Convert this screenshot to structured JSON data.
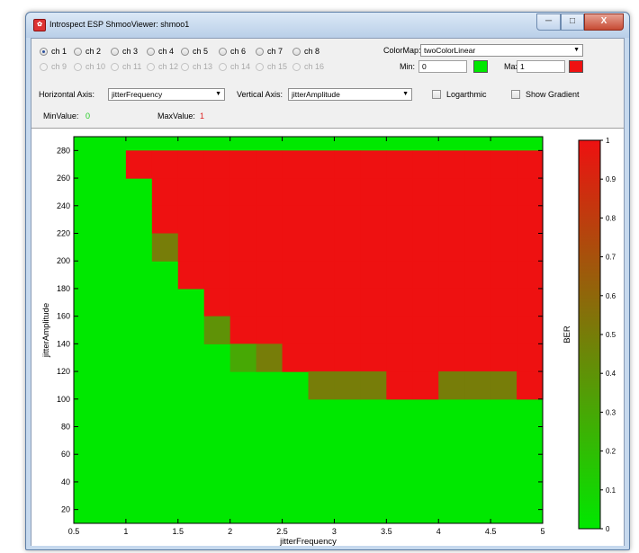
{
  "window": {
    "title": "Introspect ESP ShmooViewer: shmoo1",
    "app_icon": "app-logo-icon",
    "controls": {
      "minimize": "─",
      "maximize": "□",
      "close": "X"
    }
  },
  "channels": [
    {
      "label": "ch 1",
      "enabled": true,
      "selected": true
    },
    {
      "label": "ch 2",
      "enabled": true,
      "selected": false
    },
    {
      "label": "ch 3",
      "enabled": true,
      "selected": false
    },
    {
      "label": "ch 4",
      "enabled": true,
      "selected": false
    },
    {
      "label": "ch 5",
      "enabled": true,
      "selected": false
    },
    {
      "label": "ch 6",
      "enabled": true,
      "selected": false
    },
    {
      "label": "ch 7",
      "enabled": true,
      "selected": false
    },
    {
      "label": "ch 8",
      "enabled": true,
      "selected": false
    },
    {
      "label": "ch 9",
      "enabled": false,
      "selected": false
    },
    {
      "label": "ch 10",
      "enabled": false,
      "selected": false
    },
    {
      "label": "ch 11",
      "enabled": false,
      "selected": false
    },
    {
      "label": "ch 12",
      "enabled": false,
      "selected": false
    },
    {
      "label": "ch 13",
      "enabled": false,
      "selected": false
    },
    {
      "label": "ch 14",
      "enabled": false,
      "selected": false
    },
    {
      "label": "ch 15",
      "enabled": false,
      "selected": false
    },
    {
      "label": "ch 16",
      "enabled": false,
      "selected": false
    }
  ],
  "colormap": {
    "label": "ColorMap:",
    "value": "twoColorLinear",
    "min_label": "Min:",
    "min_value": "0",
    "min_color": "#00e800",
    "max_label": "Max:",
    "max_value": "1",
    "max_color": "#ee1111"
  },
  "axes_controls": {
    "horizontal_label": "Horizontal Axis:",
    "horizontal_value": "jitterFrequency",
    "vertical_label": "Vertical Axis:",
    "vertical_value": "jitterAmplitude",
    "log_label": "Logarthmic",
    "log_checked": false,
    "gradient_label": "Show Gradient",
    "gradient_checked": false
  },
  "range": {
    "min_label": "MinValue:",
    "min_value": "0",
    "min_color": "#22cc22",
    "max_label": "MaxValue:",
    "max_value": "1",
    "max_color": "#dd2222"
  },
  "chart_data": {
    "type": "heatmap",
    "title": "",
    "xlabel": "jitterFrequency",
    "ylabel": "jitterAmplitude",
    "xlim": [
      0.5,
      5
    ],
    "ylim": [
      10,
      290
    ],
    "xticks": [
      "0.5",
      "1",
      "1.5",
      "2",
      "2.5",
      "3",
      "3.5",
      "4",
      "4.5",
      "5"
    ],
    "xtick_values": [
      0.5,
      1,
      1.5,
      2,
      2.5,
      3,
      3.5,
      4,
      4.5,
      5
    ],
    "yticks": [
      "20",
      "40",
      "60",
      "80",
      "100",
      "120",
      "140",
      "160",
      "180",
      "200",
      "220",
      "240",
      "260",
      "280"
    ],
    "ytick_values": [
      20,
      40,
      60,
      80,
      100,
      120,
      140,
      160,
      180,
      200,
      220,
      240,
      260,
      280
    ],
    "x_cell_width": 0.25,
    "y_cell_height": 20,
    "note_cells": "Cells not listed have value 0 (green). Each cell spans x to x+0.25 and y to y+20.",
    "cells": [
      {
        "x": 1.125,
        "y": 270,
        "v": 1
      },
      {
        "x": 1.375,
        "y": 270,
        "v": 1
      },
      {
        "x": 1.625,
        "y": 270,
        "v": 1
      },
      {
        "x": 1.875,
        "y": 270,
        "v": 1
      },
      {
        "x": 2.125,
        "y": 270,
        "v": 1
      },
      {
        "x": 2.375,
        "y": 270,
        "v": 1
      },
      {
        "x": 2.625,
        "y": 270,
        "v": 1
      },
      {
        "x": 2.875,
        "y": 270,
        "v": 1
      },
      {
        "x": 3.125,
        "y": 270,
        "v": 1
      },
      {
        "x": 3.375,
        "y": 270,
        "v": 1
      },
      {
        "x": 3.625,
        "y": 270,
        "v": 1
      },
      {
        "x": 3.875,
        "y": 270,
        "v": 1
      },
      {
        "x": 4.125,
        "y": 270,
        "v": 1
      },
      {
        "x": 4.375,
        "y": 270,
        "v": 1
      },
      {
        "x": 4.625,
        "y": 270,
        "v": 1
      },
      {
        "x": 4.875,
        "y": 270,
        "v": 1
      },
      {
        "x": 1.375,
        "y": 250,
        "v": 1
      },
      {
        "x": 1.625,
        "y": 250,
        "v": 1
      },
      {
        "x": 1.875,
        "y": 250,
        "v": 1
      },
      {
        "x": 2.125,
        "y": 250,
        "v": 1
      },
      {
        "x": 2.375,
        "y": 250,
        "v": 1
      },
      {
        "x": 2.625,
        "y": 250,
        "v": 1
      },
      {
        "x": 2.875,
        "y": 250,
        "v": 1
      },
      {
        "x": 3.125,
        "y": 250,
        "v": 1
      },
      {
        "x": 3.375,
        "y": 250,
        "v": 1
      },
      {
        "x": 3.625,
        "y": 250,
        "v": 1
      },
      {
        "x": 3.875,
        "y": 250,
        "v": 1
      },
      {
        "x": 4.125,
        "y": 250,
        "v": 1
      },
      {
        "x": 4.375,
        "y": 250,
        "v": 1
      },
      {
        "x": 4.625,
        "y": 250,
        "v": 1
      },
      {
        "x": 4.875,
        "y": 250,
        "v": 1
      },
      {
        "x": 1.375,
        "y": 230,
        "v": 1
      },
      {
        "x": 1.625,
        "y": 230,
        "v": 1
      },
      {
        "x": 1.875,
        "y": 230,
        "v": 1
      },
      {
        "x": 2.125,
        "y": 230,
        "v": 1
      },
      {
        "x": 2.375,
        "y": 230,
        "v": 1
      },
      {
        "x": 2.625,
        "y": 230,
        "v": 1
      },
      {
        "x": 2.875,
        "y": 230,
        "v": 1
      },
      {
        "x": 3.125,
        "y": 230,
        "v": 1
      },
      {
        "x": 3.375,
        "y": 230,
        "v": 1
      },
      {
        "x": 3.625,
        "y": 230,
        "v": 1
      },
      {
        "x": 3.875,
        "y": 230,
        "v": 1
      },
      {
        "x": 4.125,
        "y": 230,
        "v": 1
      },
      {
        "x": 4.375,
        "y": 230,
        "v": 1
      },
      {
        "x": 4.625,
        "y": 230,
        "v": 1
      },
      {
        "x": 4.875,
        "y": 230,
        "v": 1
      },
      {
        "x": 1.375,
        "y": 210,
        "v": 0.5
      },
      {
        "x": 1.625,
        "y": 210,
        "v": 1
      },
      {
        "x": 1.875,
        "y": 210,
        "v": 1
      },
      {
        "x": 2.125,
        "y": 210,
        "v": 1
      },
      {
        "x": 2.375,
        "y": 210,
        "v": 1
      },
      {
        "x": 2.625,
        "y": 210,
        "v": 1
      },
      {
        "x": 2.875,
        "y": 210,
        "v": 1
      },
      {
        "x": 3.125,
        "y": 210,
        "v": 1
      },
      {
        "x": 3.375,
        "y": 210,
        "v": 1
      },
      {
        "x": 3.625,
        "y": 210,
        "v": 1
      },
      {
        "x": 3.875,
        "y": 210,
        "v": 1
      },
      {
        "x": 4.125,
        "y": 210,
        "v": 1
      },
      {
        "x": 4.375,
        "y": 210,
        "v": 1
      },
      {
        "x": 4.625,
        "y": 210,
        "v": 1
      },
      {
        "x": 4.875,
        "y": 210,
        "v": 1
      },
      {
        "x": 1.625,
        "y": 190,
        "v": 1
      },
      {
        "x": 1.875,
        "y": 190,
        "v": 1
      },
      {
        "x": 2.125,
        "y": 190,
        "v": 1
      },
      {
        "x": 2.375,
        "y": 190,
        "v": 1
      },
      {
        "x": 2.625,
        "y": 190,
        "v": 1
      },
      {
        "x": 2.875,
        "y": 190,
        "v": 1
      },
      {
        "x": 3.125,
        "y": 190,
        "v": 1
      },
      {
        "x": 3.375,
        "y": 190,
        "v": 1
      },
      {
        "x": 3.625,
        "y": 190,
        "v": 1
      },
      {
        "x": 3.875,
        "y": 190,
        "v": 1
      },
      {
        "x": 4.125,
        "y": 190,
        "v": 1
      },
      {
        "x": 4.375,
        "y": 190,
        "v": 1
      },
      {
        "x": 4.625,
        "y": 190,
        "v": 1
      },
      {
        "x": 4.875,
        "y": 190,
        "v": 1
      },
      {
        "x": 1.875,
        "y": 170,
        "v": 1
      },
      {
        "x": 2.125,
        "y": 170,
        "v": 1
      },
      {
        "x": 2.375,
        "y": 170,
        "v": 1
      },
      {
        "x": 2.625,
        "y": 170,
        "v": 1
      },
      {
        "x": 2.875,
        "y": 170,
        "v": 1
      },
      {
        "x": 3.125,
        "y": 170,
        "v": 1
      },
      {
        "x": 3.375,
        "y": 170,
        "v": 1
      },
      {
        "x": 3.625,
        "y": 170,
        "v": 1
      },
      {
        "x": 3.875,
        "y": 170,
        "v": 1
      },
      {
        "x": 4.125,
        "y": 170,
        "v": 1
      },
      {
        "x": 4.375,
        "y": 170,
        "v": 1
      },
      {
        "x": 4.625,
        "y": 170,
        "v": 1
      },
      {
        "x": 4.875,
        "y": 170,
        "v": 1
      },
      {
        "x": 1.875,
        "y": 150,
        "v": 0.4
      },
      {
        "x": 2.125,
        "y": 150,
        "v": 1
      },
      {
        "x": 2.375,
        "y": 150,
        "v": 1
      },
      {
        "x": 2.625,
        "y": 150,
        "v": 1
      },
      {
        "x": 2.875,
        "y": 150,
        "v": 1
      },
      {
        "x": 3.125,
        "y": 150,
        "v": 1
      },
      {
        "x": 3.375,
        "y": 150,
        "v": 1
      },
      {
        "x": 3.625,
        "y": 150,
        "v": 1
      },
      {
        "x": 3.875,
        "y": 150,
        "v": 1
      },
      {
        "x": 4.125,
        "y": 150,
        "v": 1
      },
      {
        "x": 4.375,
        "y": 150,
        "v": 1
      },
      {
        "x": 4.625,
        "y": 150,
        "v": 1
      },
      {
        "x": 4.875,
        "y": 150,
        "v": 1
      },
      {
        "x": 2.125,
        "y": 130,
        "v": 0.3
      },
      {
        "x": 2.375,
        "y": 130,
        "v": 0.5
      },
      {
        "x": 2.625,
        "y": 130,
        "v": 1
      },
      {
        "x": 2.875,
        "y": 130,
        "v": 1
      },
      {
        "x": 3.125,
        "y": 130,
        "v": 1
      },
      {
        "x": 3.375,
        "y": 130,
        "v": 1
      },
      {
        "x": 3.625,
        "y": 130,
        "v": 1
      },
      {
        "x": 3.875,
        "y": 130,
        "v": 1
      },
      {
        "x": 4.125,
        "y": 130,
        "v": 1
      },
      {
        "x": 4.375,
        "y": 130,
        "v": 1
      },
      {
        "x": 4.625,
        "y": 130,
        "v": 1
      },
      {
        "x": 4.875,
        "y": 130,
        "v": 1
      },
      {
        "x": 2.875,
        "y": 110,
        "v": 0.5
      },
      {
        "x": 3.125,
        "y": 110,
        "v": 0.5
      },
      {
        "x": 3.375,
        "y": 110,
        "v": 0.5
      },
      {
        "x": 3.625,
        "y": 110,
        "v": 1
      },
      {
        "x": 3.875,
        "y": 110,
        "v": 1
      },
      {
        "x": 4.125,
        "y": 110,
        "v": 0.5
      },
      {
        "x": 4.375,
        "y": 110,
        "v": 0.5
      },
      {
        "x": 4.625,
        "y": 110,
        "v": 0.5
      },
      {
        "x": 4.875,
        "y": 110,
        "v": 1
      }
    ],
    "colorbar": {
      "label": "BER",
      "ticks": [
        "0",
        "0.1",
        "0.2",
        "0.3",
        "0.4",
        "0.5",
        "0.6",
        "0.7",
        "0.8",
        "0.9",
        "1"
      ],
      "tick_values": [
        0,
        0.1,
        0.2,
        0.3,
        0.4,
        0.5,
        0.6,
        0.7,
        0.8,
        0.9,
        1
      ],
      "min_color": "#00e800",
      "max_color": "#ee1111"
    }
  }
}
